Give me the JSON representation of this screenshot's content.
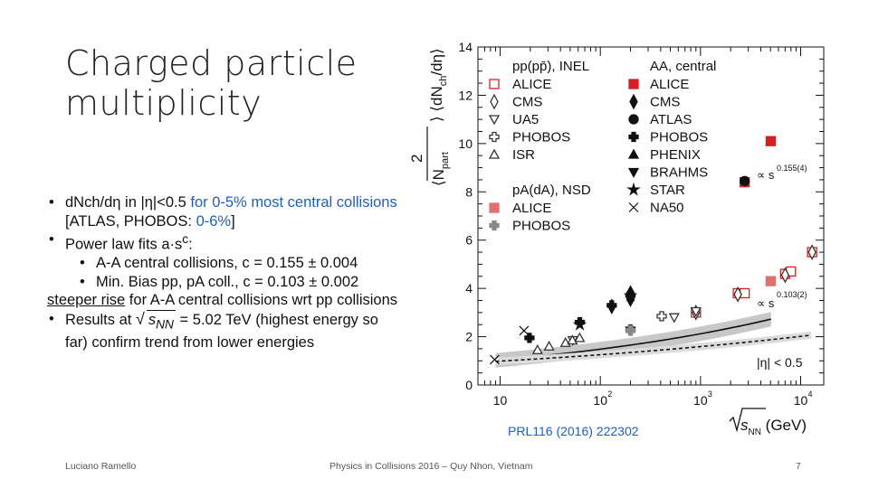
{
  "slide": {
    "title_line1": "Charged particle",
    "title_line2": "multiplicity",
    "footer_left": "Luciano Ramello",
    "footer_center": "Physics in Collisions 2016 – Quy Nhon, Vietnam",
    "page_number": "7",
    "reference": "PRL116 (2016) 222302"
  },
  "bullets": {
    "b1_black": "dNch/dη in |η|<0.5 ",
    "b1_blue": "for 0-5% most central collisions ",
    "b1_black2": "[ATLAS, PHOBOS: ",
    "b1_blue2": "0-6%",
    "b1_black3": "]",
    "b2": "Power law fits a·s",
    "b2_sup": "c",
    "b2_end": ":",
    "b2_sub1": "A-A central collisions, c = 0.155 ± 0.004",
    "b2_sub2": "Min. Bias pp, pA coll., c = 0.103 ± 0.002",
    "b3_underlined": "steeper rise",
    "b3_rest": " for A-A central collisions wrt pp collisions",
    "b4_pre": "Results at ",
    "b4_sqrt": "s",
    "b4_sqrt_sub": "NN",
    "b4_post": " = 5.02 TeV (highest energy so far) confirm trend from lower energies"
  },
  "chart_data": {
    "type": "scatter",
    "xscale": "log",
    "xlim": [
      6,
      17000
    ],
    "ylim": [
      0,
      14
    ],
    "xticks": [
      10,
      100,
      1000,
      10000
    ],
    "xtick_labels": [
      "10",
      "10",
      "10",
      "10"
    ],
    "xtick_exponents": [
      "",
      "2",
      "3",
      "4"
    ],
    "yticks": [
      0,
      2,
      4,
      6,
      8,
      10,
      12,
      14
    ],
    "ytick_labels": [
      "0",
      "2",
      "4",
      "6",
      "8",
      "10",
      "12",
      "14"
    ],
    "ylabel_frac_num": "2",
    "ylabel_frac_den": "⟨N",
    "ylabel_frac_den_sub": "part",
    "ylabel_tail": "⟩ ⟨dN",
    "ylabel_tail_sub": "ch",
    "ylabel_tail_end": "/dη⟩",
    "xlabel_main": "s",
    "xlabel_sub": "NN",
    "xlabel_unit": " (GeV)",
    "eta_label": "|η| < 0.5",
    "fit_aa": {
      "label": "∝ s",
      "exponent": "0.155(4)",
      "a": 0.727,
      "c": 0.155
    },
    "fit_pp": {
      "label": "∝ s",
      "exponent": "0.103(2)",
      "a": 0.78,
      "c": 0.103
    },
    "legend": {
      "left_header": "pp(pp̄), INEL",
      "right_header": "AA, central",
      "left_items": [
        "ALICE",
        "CMS",
        "UA5",
        "PHOBOS",
        "ISR"
      ],
      "right_items": [
        "ALICE",
        "CMS",
        "ATLAS",
        "PHOBOS",
        "PHENIX",
        "BRAHMS",
        "STAR",
        "NA50"
      ],
      "pa_header": "pA(dA), NSD",
      "pa_items": [
        "ALICE",
        "PHOBOS"
      ]
    },
    "series": [
      {
        "name": "ALICE AA",
        "marker": "square",
        "color": "#d42020",
        "filled": true,
        "points": [
          [
            2760,
            8.4
          ],
          [
            5020,
            10.1
          ]
        ]
      },
      {
        "name": "CMS AA",
        "marker": "diamond",
        "color": "#111111",
        "filled": true,
        "points": [
          [
            130,
            3.25
          ],
          [
            200,
            3.8
          ],
          [
            200,
            3.55
          ]
        ]
      },
      {
        "name": "ATLAS AA",
        "marker": "circle",
        "color": "#111111",
        "filled": true,
        "points": [
          [
            2760,
            8.45
          ]
        ]
      },
      {
        "name": "PHOBOS AA",
        "marker": "cross",
        "color": "#111111",
        "filled": true,
        "points": [
          [
            19.6,
            1.95
          ],
          [
            62.4,
            2.6
          ],
          [
            130,
            3.3
          ],
          [
            200,
            3.7
          ]
        ]
      },
      {
        "name": "PHENIX AA",
        "marker": "triangle-up",
        "color": "#111111",
        "filled": true,
        "points": [
          [
            200,
            3.9
          ]
        ]
      },
      {
        "name": "BRAHMS AA",
        "marker": "triangle-down",
        "color": "#111111",
        "filled": true,
        "points": [
          [
            200,
            3.6
          ]
        ]
      },
      {
        "name": "STAR AA",
        "marker": "star",
        "color": "#111111",
        "filled": true,
        "points": [
          [
            62.4,
            2.5
          ],
          [
            200,
            3.7
          ]
        ]
      },
      {
        "name": "NA50 AA",
        "marker": "x",
        "color": "#111111",
        "filled": false,
        "points": [
          [
            8.8,
            1.05
          ],
          [
            17.3,
            2.25
          ]
        ]
      },
      {
        "name": "ALICE pp",
        "marker": "square",
        "color": "#d42020",
        "filled": false,
        "points": [
          [
            900,
            3.0
          ],
          [
            2360,
            3.8
          ],
          [
            2760,
            3.8
          ],
          [
            7000,
            4.6
          ],
          [
            8000,
            4.7
          ],
          [
            13000,
            5.5
          ]
        ]
      },
      {
        "name": "CMS pp",
        "marker": "diamond",
        "color": "#333333",
        "filled": false,
        "points": [
          [
            900,
            3.0
          ],
          [
            2360,
            3.75
          ],
          [
            7000,
            4.55
          ],
          [
            13000,
            5.5
          ]
        ]
      },
      {
        "name": "UA5 pp",
        "marker": "triangle-down",
        "color": "#333333",
        "filled": false,
        "points": [
          [
            53,
            1.85
          ],
          [
            200,
            2.25
          ],
          [
            546,
            2.8
          ],
          [
            900,
            3.05
          ]
        ]
      },
      {
        "name": "PHOBOS pp",
        "marker": "cross",
        "color": "#333333",
        "filled": false,
        "points": [
          [
            200,
            2.3
          ],
          [
            410,
            2.85
          ]
        ]
      },
      {
        "name": "ISR pp",
        "marker": "triangle-up",
        "color": "#333333",
        "filled": false,
        "points": [
          [
            23.6,
            1.45
          ],
          [
            30.8,
            1.6
          ],
          [
            44.9,
            1.75
          ],
          [
            52.6,
            1.85
          ],
          [
            62.2,
            1.95
          ]
        ]
      },
      {
        "name": "ALICE pA",
        "marker": "square",
        "color": "#e07070",
        "filled": true,
        "points": [
          [
            5020,
            4.3
          ]
        ]
      },
      {
        "name": "PHOBOS dA",
        "marker": "cross",
        "color": "#888888",
        "filled": true,
        "points": [
          [
            200,
            2.25
          ]
        ]
      }
    ]
  }
}
